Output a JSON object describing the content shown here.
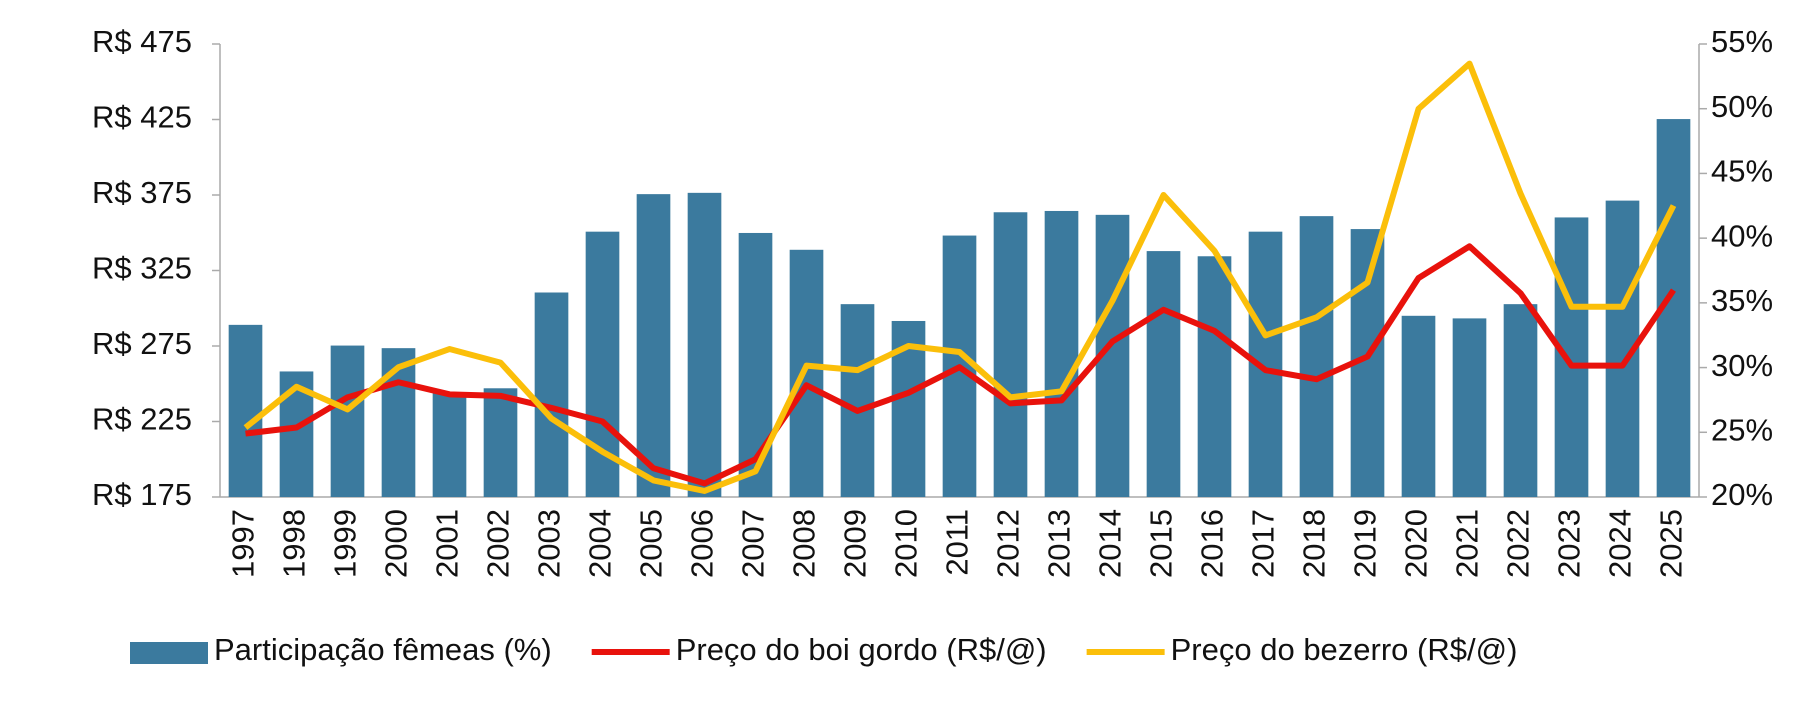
{
  "chart_data": {
    "type": "bar-line",
    "categories": [
      "1997",
      "1998",
      "1999",
      "2000",
      "2001",
      "2002",
      "2003",
      "2004",
      "2005",
      "2006",
      "2007",
      "2008",
      "2009",
      "2010",
      "2011",
      "2012",
      "2013",
      "2014",
      "2015",
      "2016",
      "2017",
      "2018",
      "2019",
      "2020",
      "2021",
      "2022",
      "2023",
      "2024",
      "2025"
    ],
    "series": [
      {
        "name": "Participação fêmeas (%)",
        "type": "bar",
        "axis": "y2",
        "color": "#3b7a9e",
        "values": [
          33.3,
          29.7,
          31.7,
          31.5,
          28,
          28.4,
          35.8,
          40.5,
          43.4,
          43.5,
          40.4,
          39.1,
          34.9,
          33.6,
          40.2,
          42,
          42.1,
          41.8,
          39,
          38.6,
          40.5,
          41.7,
          40.7,
          34,
          33.8,
          34.9,
          41.6,
          42.9,
          49.2
        ]
      },
      {
        "name": "Preço do boi gordo (R$/@)",
        "type": "line",
        "axis": "y",
        "color": "#e8120c",
        "values": [
          217,
          221,
          241,
          251,
          243,
          242,
          234,
          225,
          194,
          184,
          200,
          249,
          232,
          244,
          261,
          237,
          239,
          278,
          299,
          285,
          259,
          253,
          268,
          320,
          341,
          310,
          262,
          262,
          312
        ]
      },
      {
        "name": "Preço do bezerro (R$/@)",
        "type": "line",
        "axis": "y",
        "color": "#fbbf0a",
        "values": [
          221,
          248,
          233,
          261,
          273,
          264,
          227,
          205,
          186,
          179,
          192,
          262,
          259,
          275,
          271,
          241,
          245,
          305,
          375,
          338,
          282,
          294,
          317,
          432,
          462,
          376,
          301,
          301,
          368
        ]
      }
    ],
    "ylim": [
      175,
      475
    ],
    "yticks": [
      {
        "value": 175,
        "label": "R$ 175"
      },
      {
        "value": 225,
        "label": "R$ 225"
      },
      {
        "value": 275,
        "label": "R$ 275"
      },
      {
        "value": 325,
        "label": "R$ 325"
      },
      {
        "value": 375,
        "label": "R$ 375"
      },
      {
        "value": 425,
        "label": "R$ 425"
      },
      {
        "value": 475,
        "label": "R$ 475"
      }
    ],
    "y2lim": [
      20,
      55
    ],
    "y2ticks": [
      {
        "value": 20,
        "label": "20%"
      },
      {
        "value": 25,
        "label": "25%"
      },
      {
        "value": 30,
        "label": "30%"
      },
      {
        "value": 35,
        "label": "35%"
      },
      {
        "value": 40,
        "label": "40%"
      },
      {
        "value": 45,
        "label": "45%"
      },
      {
        "value": 50,
        "label": "50%"
      },
      {
        "value": 55,
        "label": "55%"
      }
    ],
    "legend": "bottom"
  }
}
